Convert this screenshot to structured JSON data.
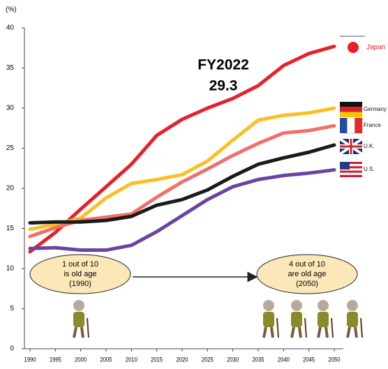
{
  "chart_data": {
    "type": "line",
    "y_unit": "(%)",
    "x": [
      1990,
      1995,
      2000,
      2005,
      2010,
      2015,
      2020,
      2025,
      2030,
      2035,
      2040,
      2045,
      2050
    ],
    "xticks": [
      1990,
      1995,
      2000,
      2005,
      2010,
      2015,
      2020,
      2025,
      2030,
      2035,
      2040,
      2045,
      2050
    ],
    "xlim": [
      1990,
      2050
    ],
    "ylim": [
      0,
      40
    ],
    "yticks": [
      0,
      5,
      10,
      15,
      20,
      25,
      30,
      35,
      40
    ],
    "series": [
      {
        "name": "Japan",
        "color": "#e8202a",
        "values": [
          12.1,
          14.5,
          17.4,
          20.2,
          23.0,
          26.6,
          28.6,
          30.0,
          31.2,
          32.8,
          35.3,
          36.8,
          37.7
        ]
      },
      {
        "name": "Germany",
        "color": "#fbbf25",
        "values": [
          14.9,
          15.5,
          16.3,
          18.8,
          20.6,
          21.1,
          21.7,
          23.4,
          26.0,
          28.5,
          29.1,
          29.4,
          30.0
        ]
      },
      {
        "name": "France",
        "color": "#f07068",
        "values": [
          14.0,
          15.1,
          16.0,
          16.4,
          16.8,
          18.9,
          20.8,
          22.4,
          24.1,
          25.6,
          26.9,
          27.2,
          27.8
        ]
      },
      {
        "name": "U.K.",
        "color": "#1a1a1a",
        "values": [
          15.7,
          15.8,
          15.8,
          16.0,
          16.5,
          17.9,
          18.6,
          19.8,
          21.5,
          23.0,
          23.8,
          24.5,
          25.4
        ]
      },
      {
        "name": "U.S.",
        "color": "#6a45a0",
        "values": [
          12.5,
          12.6,
          12.3,
          12.3,
          12.9,
          14.6,
          16.6,
          18.6,
          20.2,
          21.1,
          21.6,
          21.9,
          22.3
        ]
      }
    ],
    "highlight_label": "FY2022",
    "highlight_value": 29.3,
    "callouts": [
      {
        "lines": [
          "1 out of 10",
          "is old age",
          "(1990)"
        ]
      },
      {
        "lines": [
          "4 out of 10",
          "are old age",
          "(2050)"
        ]
      }
    ]
  }
}
